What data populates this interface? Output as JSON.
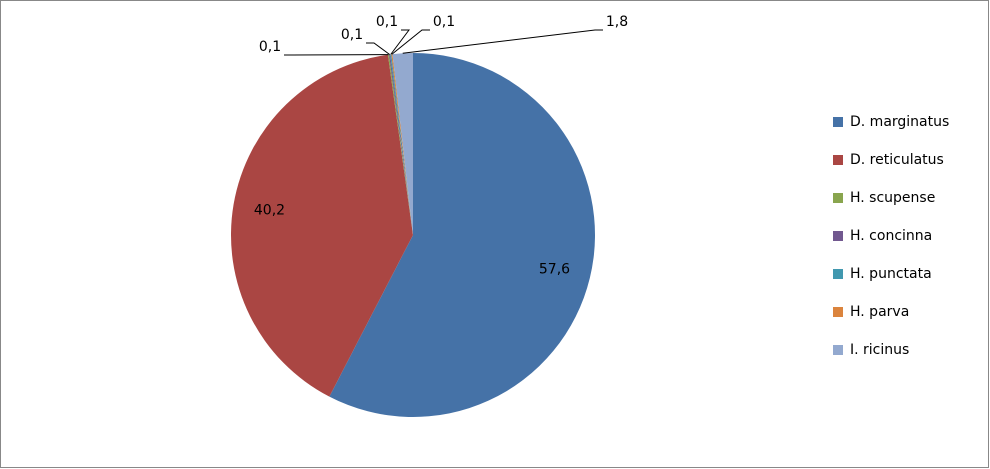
{
  "chart_data": {
    "type": "pie",
    "categories": [
      "D. marginatus",
      "D. reticulatus",
      "H. scupense",
      "H. concinna",
      "H. punctata",
      "H. parva",
      "I. ricinus"
    ],
    "values": [
      57.6,
      40.2,
      0.1,
      0.1,
      0.1,
      0.1,
      1.8
    ],
    "value_labels": [
      "57,6",
      "40,2",
      "0,1",
      "0,1",
      "0,1",
      "0,1",
      "1,8"
    ],
    "colors": [
      "#4572a7",
      "#aa4643",
      "#89a54e",
      "#71588f",
      "#4198af",
      "#db843d",
      "#93a9cf"
    ],
    "legend": "right"
  }
}
